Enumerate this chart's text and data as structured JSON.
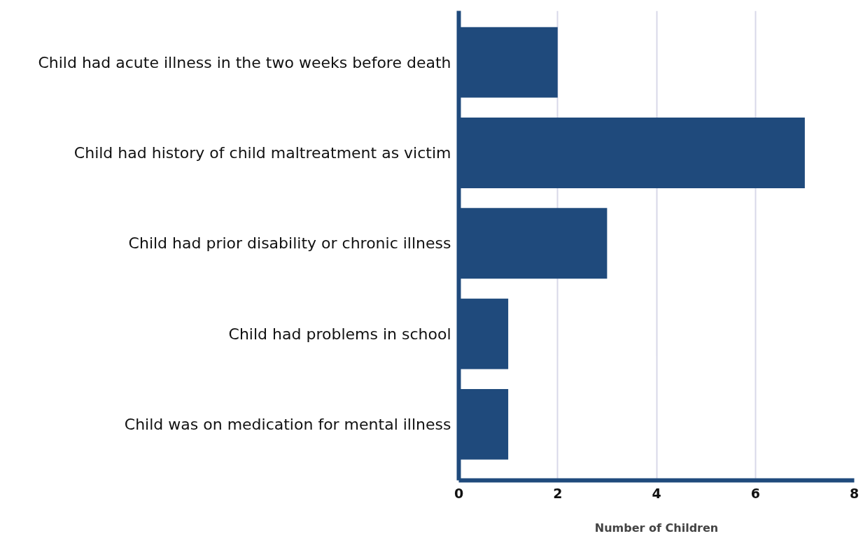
{
  "chart_data": {
    "type": "bar",
    "orientation": "horizontal",
    "xlabel": "Number of Children",
    "categories": [
      "Child had acute illness in the two weeks before death",
      "Child had history of child maltreatment as victim",
      "Child had prior disability or chronic illness",
      "Child had problems in school",
      "Child was on medication for mental illness"
    ],
    "values": [
      2,
      7,
      3,
      1,
      1
    ],
    "color": "#1f4a7c",
    "xlim": [
      0,
      8
    ],
    "xticks": [
      0,
      2,
      4,
      6,
      8
    ],
    "grid": "x"
  }
}
